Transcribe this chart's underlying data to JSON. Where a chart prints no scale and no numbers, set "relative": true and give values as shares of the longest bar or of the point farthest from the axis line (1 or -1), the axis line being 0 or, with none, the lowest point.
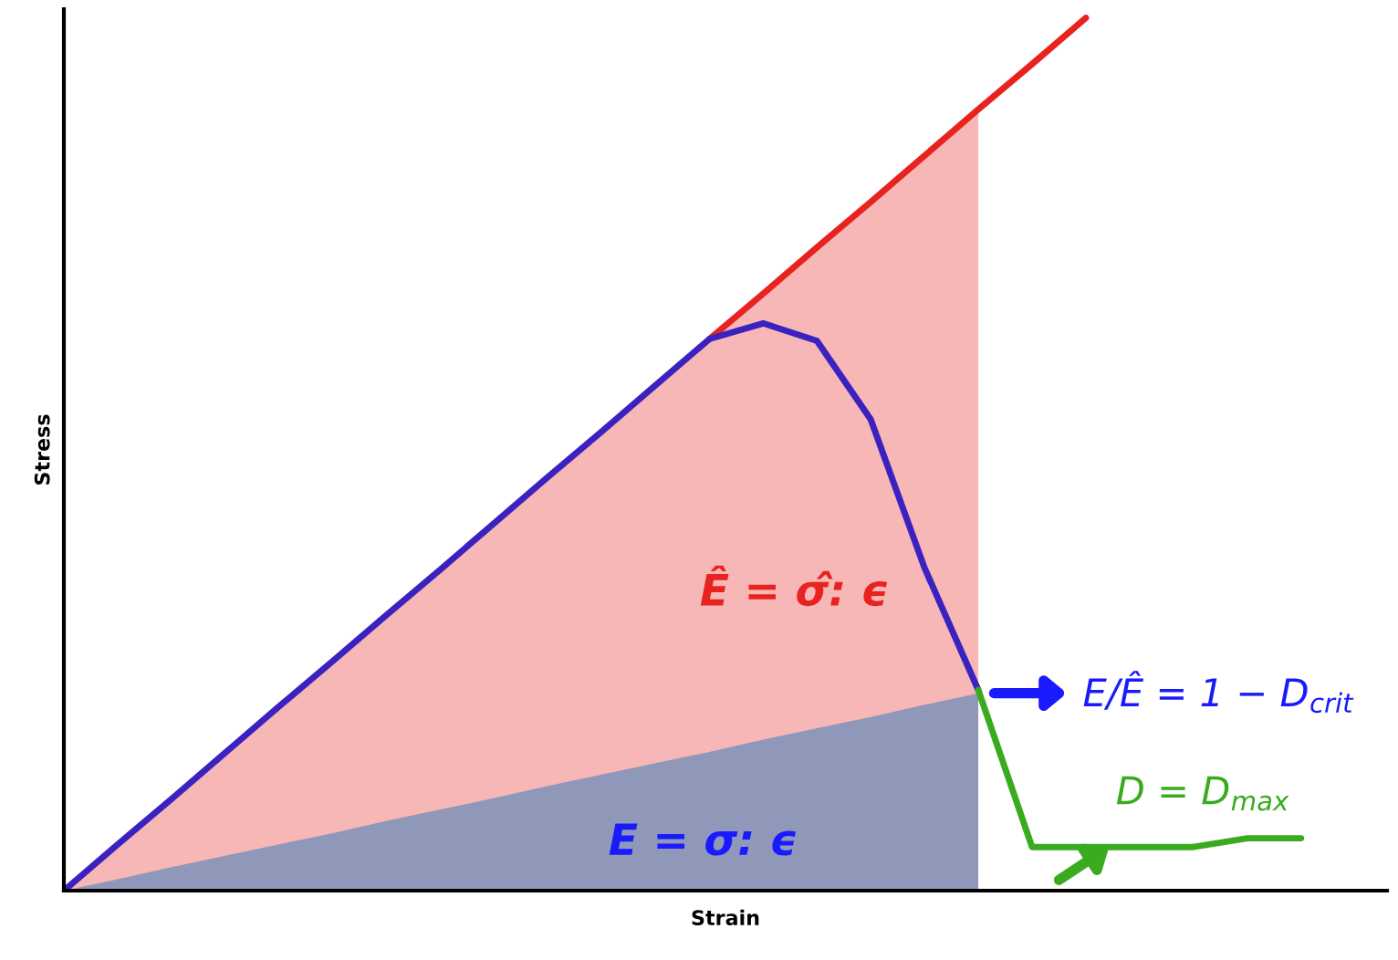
{
  "chart_data": {
    "type": "line",
    "relative": true,
    "xlabel": "Strain",
    "ylabel": "Stress",
    "categories": [
      null,
      null,
      null,
      null,
      null,
      null,
      null,
      null,
      null,
      null,
      null,
      null,
      null,
      null,
      null,
      null,
      null,
      null,
      null,
      null,
      null,
      null,
      null,
      null,
      null
    ],
    "series": [
      {
        "type": "area",
        "color": "#f7b7b7",
        "values": [
          0,
          0.053,
          0.105,
          0.158,
          0.211,
          0.263,
          0.316,
          0.368,
          0.421,
          0.474,
          0.526,
          0.579,
          0.632,
          0.684,
          0.737,
          0.789,
          0.842,
          0.895,
          null,
          null,
          null,
          null,
          null,
          null,
          null
        ]
      },
      {
        "type": "area",
        "color": "#8f98b9",
        "values": [
          0,
          0.013,
          0.027,
          0.04,
          0.053,
          0.066,
          0.08,
          0.093,
          0.106,
          0.12,
          0.133,
          0.146,
          0.159,
          0.173,
          0.186,
          0.199,
          0.213,
          0.226,
          null,
          null,
          null,
          null,
          null,
          null,
          null
        ]
      },
      {
        "color": "#e8231f",
        "values": [
          null,
          null,
          null,
          null,
          null,
          null,
          null,
          null,
          null,
          null,
          null,
          null,
          0.632,
          0.684,
          0.737,
          0.789,
          0.842,
          0.895,
          0.947,
          1,
          null,
          null,
          null,
          null,
          null
        ]
      },
      {
        "color": "#3b22c0",
        "values": [
          0,
          0.053,
          0.105,
          0.158,
          0.211,
          0.263,
          0.316,
          0.368,
          0.421,
          0.474,
          0.526,
          0.579,
          0.632,
          0.65,
          0.63,
          0.54,
          0.37,
          0.23,
          null,
          null,
          null,
          null,
          null,
          null,
          null
        ]
      },
      {
        "color": "#3aaa1f",
        "values": [
          null,
          null,
          null,
          null,
          null,
          null,
          null,
          null,
          null,
          null,
          null,
          null,
          null,
          null,
          null,
          null,
          null,
          0.23,
          0.05,
          0.05,
          0.05,
          0.05,
          0.06,
          0.06,
          null
        ]
      }
    ],
    "annotations": [
      "Ê = σ̂: ϵ",
      "E = σ: ϵ",
      "E/Ê = 1 − D$_{crit}$",
      "D = D$_{max}$"
    ]
  }
}
